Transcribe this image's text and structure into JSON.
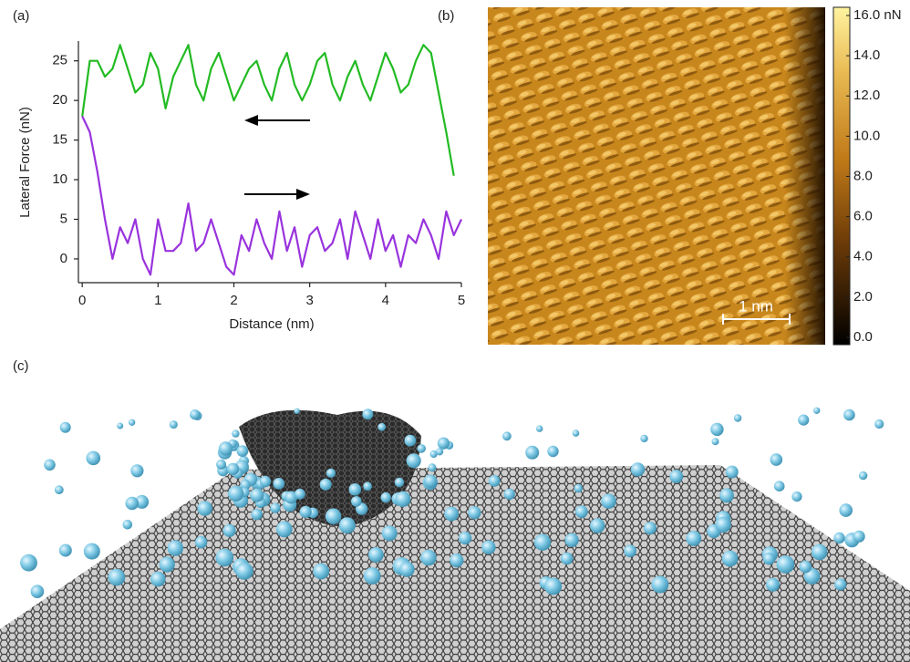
{
  "panel_labels": [
    "(a)",
    "(b)",
    "(c)"
  ],
  "chart_data": [
    {
      "type": "line",
      "xlabel": "Distance (nm)",
      "ylabel": "Lateral Force (nN)",
      "xlim": [
        -0.05,
        5.0
      ],
      "ylim": [
        -3,
        27.5
      ],
      "xticks": [
        0,
        1,
        2,
        3,
        4,
        5
      ],
      "yticks": [
        0,
        5,
        10,
        15,
        20,
        25
      ],
      "series": [
        {
          "color": "#22bb22",
          "x": [
            0,
            0.1,
            0.2,
            0.3,
            0.4,
            0.5,
            0.6,
            0.7,
            0.8,
            0.9,
            1.0,
            1.1,
            1.2,
            1.3,
            1.4,
            1.5,
            1.6,
            1.7,
            1.8,
            1.9,
            2.0,
            2.1,
            2.2,
            2.3,
            2.4,
            2.5,
            2.6,
            2.7,
            2.8,
            2.9,
            3.0,
            3.1,
            3.2,
            3.3,
            3.4,
            3.5,
            3.6,
            3.7,
            3.8,
            3.9,
            4.0,
            4.1,
            4.2,
            4.3,
            4.4,
            4.5,
            4.6,
            4.7,
            4.8,
            4.9
          ],
          "values": [
            18,
            25,
            25,
            23,
            24,
            27,
            24,
            21,
            22,
            26,
            24,
            19,
            23,
            25,
            27,
            22,
            20,
            24,
            26,
            23,
            20,
            22,
            24,
            25,
            22,
            20,
            24,
            26,
            22,
            20,
            22,
            25,
            26,
            22,
            20,
            23,
            25,
            22,
            20,
            23,
            26,
            24,
            21,
            22,
            25,
            27,
            26,
            21,
            16,
            10.5
          ]
        },
        {
          "color": "#9933dd",
          "x": [
            0,
            0.1,
            0.2,
            0.3,
            0.4,
            0.5,
            0.6,
            0.7,
            0.8,
            0.9,
            1.0,
            1.1,
            1.2,
            1.3,
            1.4,
            1.5,
            1.6,
            1.7,
            1.8,
            1.9,
            2.0,
            2.1,
            2.2,
            2.3,
            2.4,
            2.5,
            2.6,
            2.7,
            2.8,
            2.9,
            3.0,
            3.1,
            3.2,
            3.3,
            3.4,
            3.5,
            3.6,
            3.7,
            3.8,
            3.9,
            4.0,
            4.1,
            4.2,
            4.3,
            4.4,
            4.5,
            4.6,
            4.7,
            4.8,
            4.9,
            5.0
          ],
          "values": [
            18,
            16,
            11,
            5,
            0,
            4,
            2,
            5,
            0,
            -2,
            5,
            1,
            1,
            2,
            7,
            1,
            2,
            5,
            2,
            -1,
            -2,
            3,
            1,
            5,
            2,
            0,
            6,
            1,
            4,
            -1,
            3,
            4,
            1,
            2,
            5,
            0,
            6,
            3,
            0,
            5,
            1,
            3,
            -1,
            3,
            2,
            5,
            3,
            0,
            6,
            3,
            5
          ]
        }
      ]
    },
    {
      "type": "colorbar",
      "ylim": [
        0,
        16
      ],
      "yticks": [
        {
          "value": 16,
          "label": "16.0 nN"
        },
        {
          "value": 14,
          "label": "14.0"
        },
        {
          "value": 12,
          "label": "12.0"
        },
        {
          "value": 10,
          "label": "10.0"
        },
        {
          "value": 8,
          "label": "8.0"
        },
        {
          "value": 6,
          "label": "6.0"
        },
        {
          "value": 4,
          "label": "4.0"
        },
        {
          "value": 2,
          "label": "2.0"
        },
        {
          "value": 0,
          "label": "0.0"
        }
      ],
      "scale_bar": "1 nm"
    }
  ]
}
